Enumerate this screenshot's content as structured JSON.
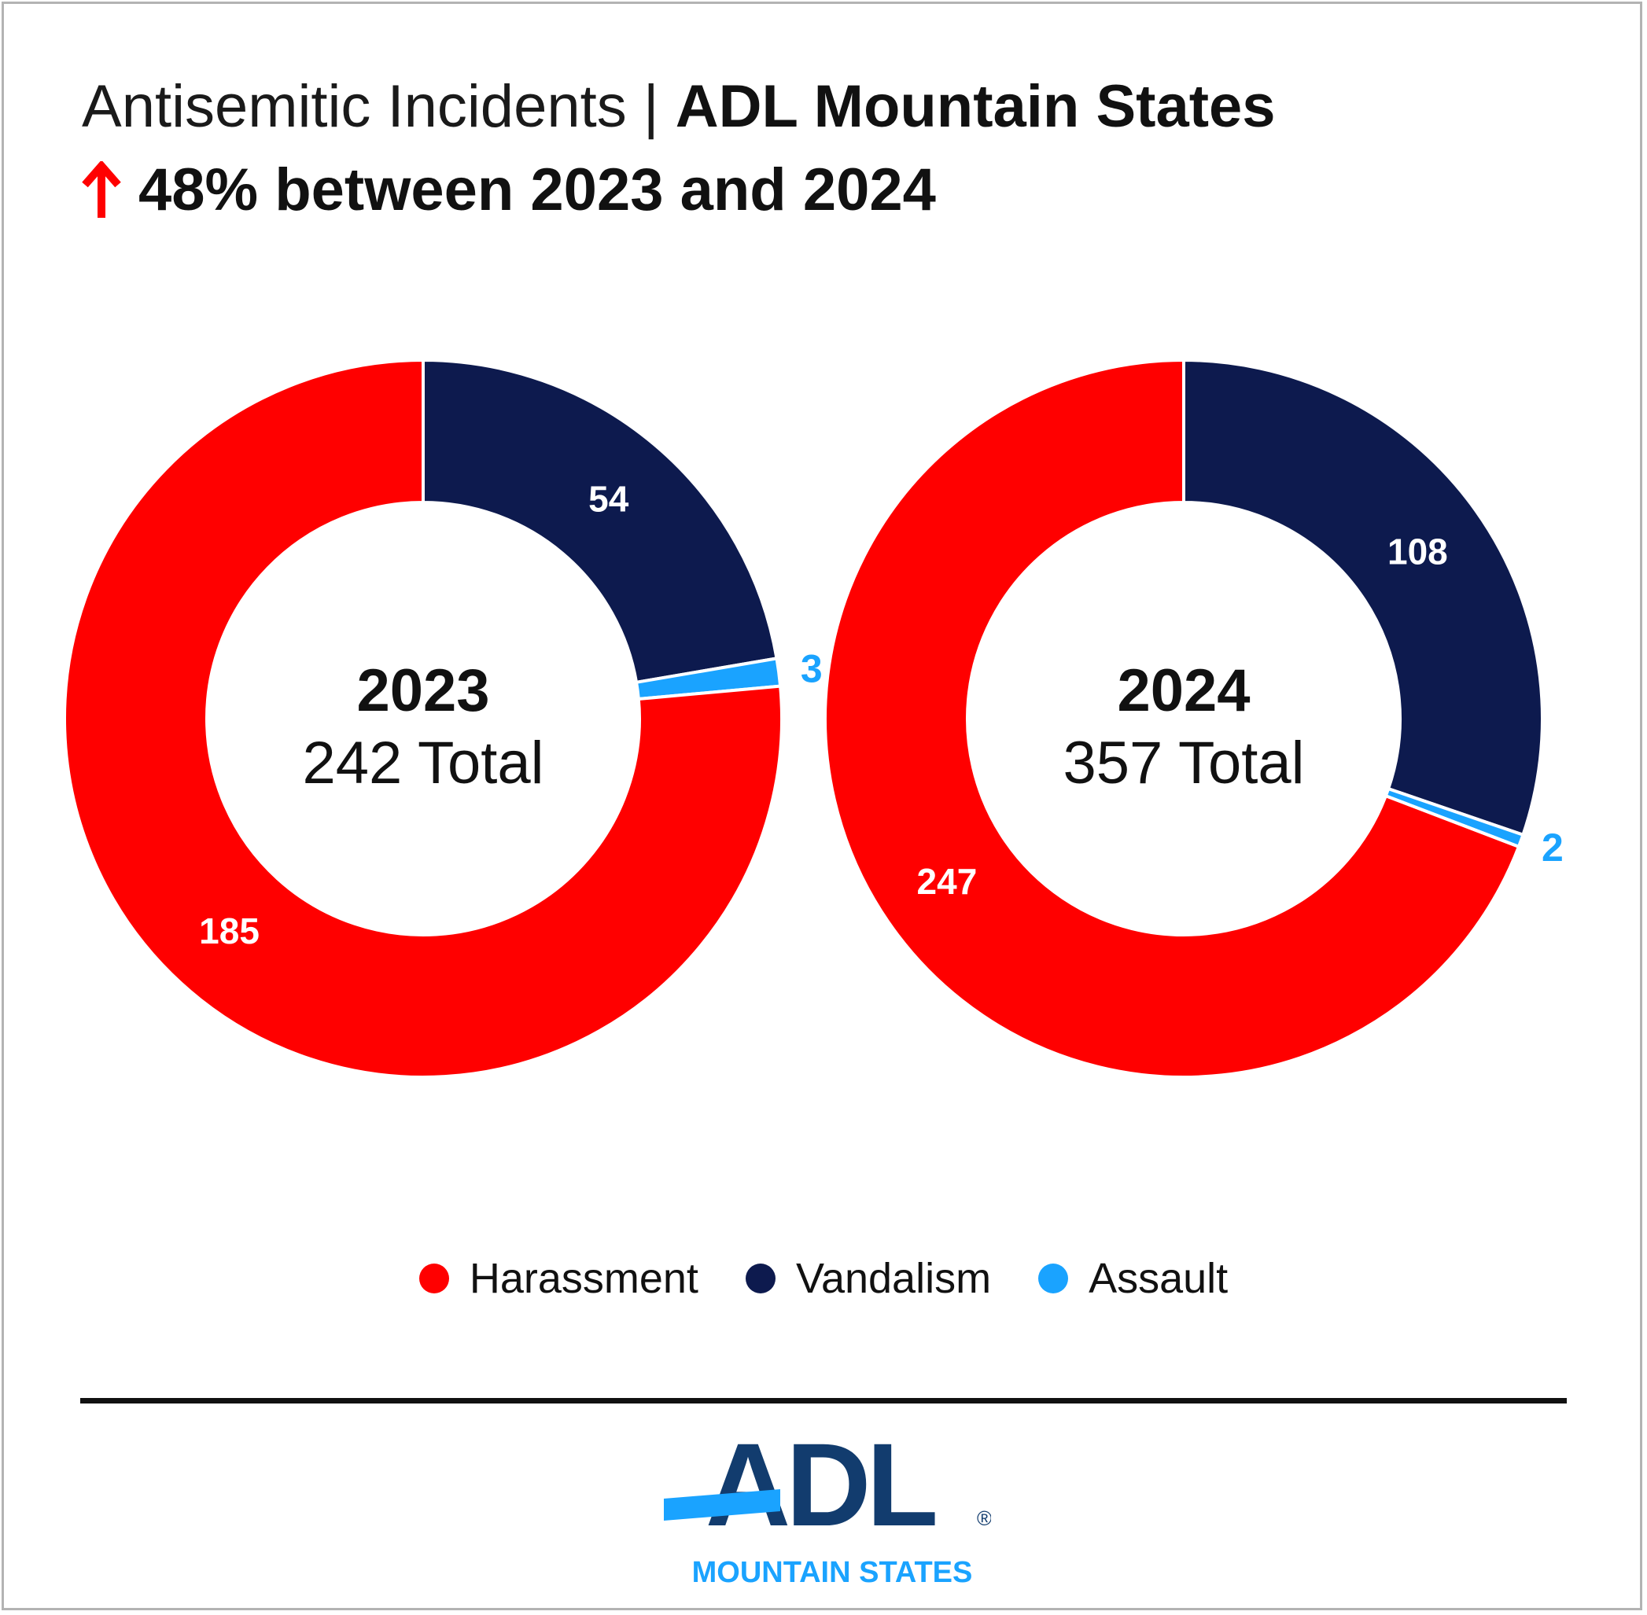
{
  "header": {
    "title_light": "Antisemitic Incidents | ",
    "title_bold": "ADL Mountain States",
    "subtitle": "48% between 2023 and 2024",
    "arrow_icon": "up-arrow-icon"
  },
  "colors": {
    "harassment": "#ff0000",
    "vandalism": "#0d1a4e",
    "assault": "#1aa3ff",
    "separator": "#ffffff"
  },
  "chart_data": [
    {
      "type": "pie",
      "variant": "donut",
      "center_title": "2023",
      "center_subtitle": "242 Total",
      "categories": [
        "Vandalism",
        "Assault",
        "Harassment"
      ],
      "values": [
        54,
        3,
        185
      ],
      "total": 242
    },
    {
      "type": "pie",
      "variant": "donut",
      "center_title": "2024",
      "center_subtitle": "357 Total",
      "categories": [
        "Vandalism",
        "Assault",
        "Harassment"
      ],
      "values": [
        108,
        2,
        247
      ],
      "total": 357
    }
  ],
  "legend": {
    "placement": "bottom-center",
    "items": [
      {
        "label": "Harassment",
        "color": "#ff0000"
      },
      {
        "label": "Vandalism",
        "color": "#0d1a4e"
      },
      {
        "label": "Assault",
        "color": "#1aa3ff"
      }
    ]
  },
  "footer": {
    "logo_text": "ADL",
    "logo_registered": "®",
    "logo_subtext": "MOUNTAIN STATES"
  }
}
